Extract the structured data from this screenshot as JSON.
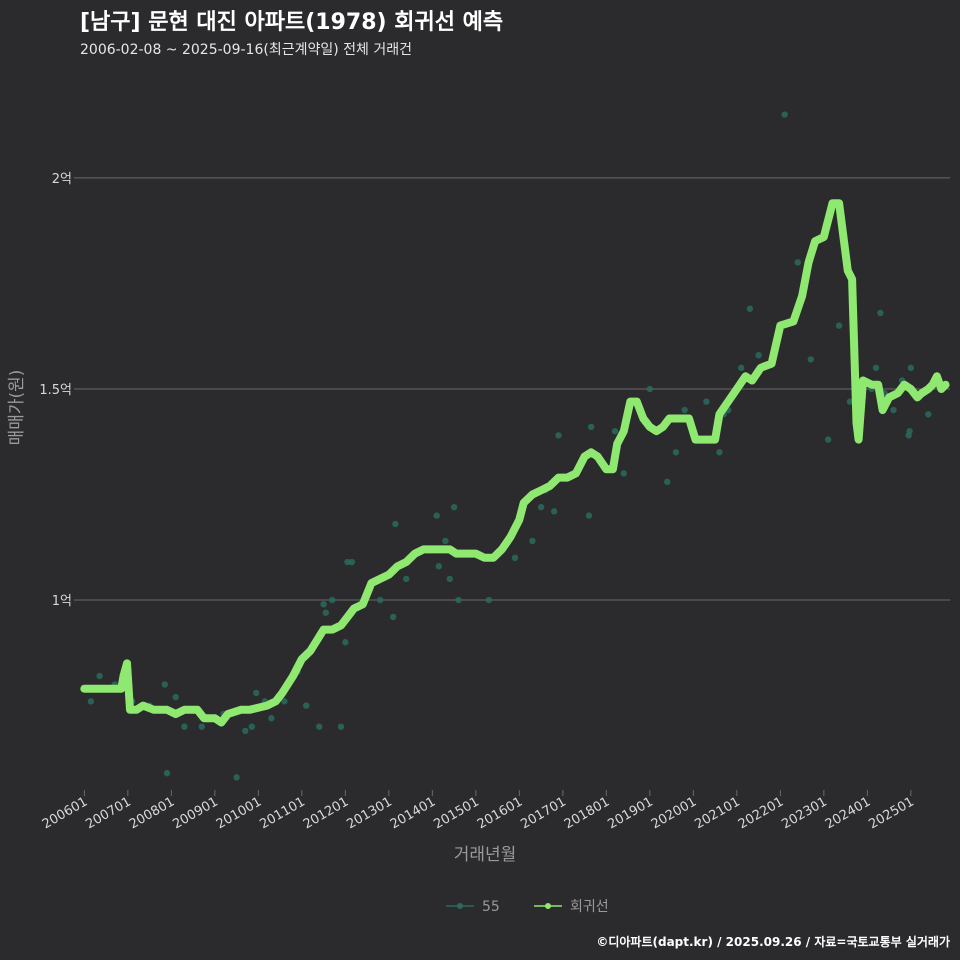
{
  "title": "[남구] 문현 대진 아파트(1978) 회귀선 예측",
  "subtitle": "2006-02-08 ~ 2025-09-16(최근계약일) 전체 거래건",
  "footer": "©디아파트(dapt.kr) / 2025.09.26 / 자료=국토교통부 실거래가",
  "colors": {
    "background": "#2b2b2d",
    "grid": "#6a6a6a",
    "regression_line": "#8fe870",
    "points": "#2a6b5e",
    "axis_text": "#d8d8d8",
    "axis_title": "#9a9a9a"
  },
  "chart_data": {
    "type": "scatter",
    "xlabel": "거래년월",
    "ylabel": "매매가(원)",
    "ylim": [
      0.55,
      2.22
    ],
    "xlim": [
      2005.9,
      2025.9
    ],
    "y_ticks": [
      {
        "value": 1.0,
        "label": "1억"
      },
      {
        "value": 1.5,
        "label": "1.5억"
      },
      {
        "value": 2.0,
        "label": "2억"
      }
    ],
    "x_ticks": [
      {
        "value": 2006,
        "label": "200601"
      },
      {
        "value": 2007,
        "label": "200701"
      },
      {
        "value": 2008,
        "label": "200801"
      },
      {
        "value": 2009,
        "label": "200901"
      },
      {
        "value": 2010,
        "label": "201001"
      },
      {
        "value": 2011,
        "label": "201101"
      },
      {
        "value": 2012,
        "label": "201201"
      },
      {
        "value": 2013,
        "label": "201301"
      },
      {
        "value": 2014,
        "label": "201401"
      },
      {
        "value": 2015,
        "label": "201501"
      },
      {
        "value": 2016,
        "label": "201601"
      },
      {
        "value": 2017,
        "label": "201701"
      },
      {
        "value": 2018,
        "label": "201801"
      },
      {
        "value": 2019,
        "label": "201901"
      },
      {
        "value": 2020,
        "label": "202001"
      },
      {
        "value": 2021,
        "label": "202101"
      },
      {
        "value": 2022,
        "label": "202201"
      },
      {
        "value": 2023,
        "label": "202301"
      },
      {
        "value": 2024,
        "label": "202401"
      },
      {
        "value": 2025,
        "label": "202501"
      }
    ],
    "legend": {
      "position": "bottom",
      "items": [
        {
          "label": "55",
          "color": "#2a6b5e"
        },
        {
          "label": "회귀선",
          "color": "#8fe870"
        }
      ]
    },
    "series": [
      {
        "name": "55",
        "kind": "points",
        "points": [
          [
            2006.15,
            0.76
          ],
          [
            2006.35,
            0.82
          ],
          [
            2006.7,
            0.8
          ],
          [
            2006.9,
            0.81
          ],
          [
            2007.1,
            0.76
          ],
          [
            2007.5,
            0.75
          ],
          [
            2007.85,
            0.8
          ],
          [
            2007.9,
            0.59
          ],
          [
            2008.1,
            0.77
          ],
          [
            2008.3,
            0.7
          ],
          [
            2008.7,
            0.7
          ],
          [
            2009.2,
            0.73
          ],
          [
            2009.5,
            0.58
          ],
          [
            2009.7,
            0.69
          ],
          [
            2009.85,
            0.7
          ],
          [
            2009.95,
            0.78
          ],
          [
            2010.15,
            0.76
          ],
          [
            2010.3,
            0.72
          ],
          [
            2010.6,
            0.76
          ],
          [
            2010.9,
            0.83
          ],
          [
            2011.1,
            0.75
          ],
          [
            2011.4,
            0.7
          ],
          [
            2011.5,
            0.99
          ],
          [
            2011.55,
            0.97
          ],
          [
            2011.7,
            1.0
          ],
          [
            2011.9,
            0.7
          ],
          [
            2012.0,
            0.9
          ],
          [
            2012.05,
            1.09
          ],
          [
            2012.15,
            1.09
          ],
          [
            2012.4,
            0.99
          ],
          [
            2012.8,
            1.0
          ],
          [
            2013.1,
            0.96
          ],
          [
            2013.15,
            1.18
          ],
          [
            2013.4,
            1.05
          ],
          [
            2014.1,
            1.2
          ],
          [
            2014.15,
            1.08
          ],
          [
            2014.3,
            1.14
          ],
          [
            2014.4,
            1.05
          ],
          [
            2014.5,
            1.22
          ],
          [
            2014.6,
            1.0
          ],
          [
            2015.2,
            1.1
          ],
          [
            2015.3,
            1.0
          ],
          [
            2015.9,
            1.1
          ],
          [
            2016.3,
            1.14
          ],
          [
            2016.5,
            1.22
          ],
          [
            2016.6,
            1.26
          ],
          [
            2016.8,
            1.21
          ],
          [
            2016.9,
            1.39
          ],
          [
            2017.3,
            1.3
          ],
          [
            2017.6,
            1.2
          ],
          [
            2017.65,
            1.41
          ],
          [
            2018.2,
            1.4
          ],
          [
            2018.4,
            1.3
          ],
          [
            2019.0,
            1.5
          ],
          [
            2019.4,
            1.28
          ],
          [
            2019.6,
            1.35
          ],
          [
            2019.8,
            1.45
          ],
          [
            2020.3,
            1.47
          ],
          [
            2020.6,
            1.35
          ],
          [
            2020.7,
            1.44
          ],
          [
            2020.8,
            1.45
          ],
          [
            2021.1,
            1.55
          ],
          [
            2021.3,
            1.69
          ],
          [
            2021.5,
            1.58
          ],
          [
            2022.1,
            2.15
          ],
          [
            2022.4,
            1.8
          ],
          [
            2022.7,
            1.57
          ],
          [
            2023.1,
            1.38
          ],
          [
            2023.35,
            1.65
          ],
          [
            2023.6,
            1.47
          ],
          [
            2023.9,
            1.48
          ],
          [
            2024.1,
            1.5
          ],
          [
            2024.2,
            1.55
          ],
          [
            2024.3,
            1.68
          ],
          [
            2024.4,
            1.49
          ],
          [
            2024.6,
            1.45
          ],
          [
            2024.8,
            1.52
          ],
          [
            2024.95,
            1.39
          ],
          [
            2024.97,
            1.4
          ],
          [
            2025.0,
            1.55
          ],
          [
            2025.4,
            1.44
          ]
        ]
      },
      {
        "name": "회귀선",
        "kind": "line",
        "points": [
          [
            2006.0,
            0.79
          ],
          [
            2006.85,
            0.79
          ],
          [
            2006.9,
            0.82
          ],
          [
            2006.98,
            0.85
          ],
          [
            2007.05,
            0.74
          ],
          [
            2007.2,
            0.74
          ],
          [
            2007.35,
            0.75
          ],
          [
            2007.6,
            0.74
          ],
          [
            2007.9,
            0.74
          ],
          [
            2008.1,
            0.73
          ],
          [
            2008.3,
            0.74
          ],
          [
            2008.6,
            0.74
          ],
          [
            2008.75,
            0.72
          ],
          [
            2009.0,
            0.72
          ],
          [
            2009.15,
            0.71
          ],
          [
            2009.3,
            0.73
          ],
          [
            2009.6,
            0.74
          ],
          [
            2009.8,
            0.74
          ],
          [
            2010.2,
            0.75
          ],
          [
            2010.4,
            0.76
          ],
          [
            2010.55,
            0.78
          ],
          [
            2010.8,
            0.82
          ],
          [
            2011.0,
            0.86
          ],
          [
            2011.2,
            0.88
          ],
          [
            2011.5,
            0.93
          ],
          [
            2011.7,
            0.93
          ],
          [
            2011.9,
            0.94
          ],
          [
            2012.2,
            0.98
          ],
          [
            2012.4,
            0.99
          ],
          [
            2012.6,
            1.04
          ],
          [
            2012.8,
            1.05
          ],
          [
            2013.0,
            1.06
          ],
          [
            2013.2,
            1.08
          ],
          [
            2013.4,
            1.09
          ],
          [
            2013.6,
            1.11
          ],
          [
            2013.8,
            1.12
          ],
          [
            2014.1,
            1.12
          ],
          [
            2014.4,
            1.12
          ],
          [
            2014.55,
            1.11
          ],
          [
            2014.8,
            1.11
          ],
          [
            2015.0,
            1.11
          ],
          [
            2015.2,
            1.1
          ],
          [
            2015.4,
            1.1
          ],
          [
            2015.6,
            1.12
          ],
          [
            2015.8,
            1.15
          ],
          [
            2016.0,
            1.19
          ],
          [
            2016.1,
            1.23
          ],
          [
            2016.3,
            1.25
          ],
          [
            2016.5,
            1.26
          ],
          [
            2016.7,
            1.27
          ],
          [
            2016.9,
            1.29
          ],
          [
            2017.1,
            1.29
          ],
          [
            2017.3,
            1.3
          ],
          [
            2017.5,
            1.34
          ],
          [
            2017.65,
            1.35
          ],
          [
            2017.8,
            1.34
          ],
          [
            2018.0,
            1.31
          ],
          [
            2018.15,
            1.31
          ],
          [
            2018.25,
            1.37
          ],
          [
            2018.4,
            1.4
          ],
          [
            2018.55,
            1.47
          ],
          [
            2018.7,
            1.47
          ],
          [
            2018.85,
            1.43
          ],
          [
            2019.0,
            1.41
          ],
          [
            2019.15,
            1.4
          ],
          [
            2019.3,
            1.41
          ],
          [
            2019.45,
            1.43
          ],
          [
            2019.7,
            1.43
          ],
          [
            2019.9,
            1.43
          ],
          [
            2020.05,
            1.38
          ],
          [
            2020.3,
            1.38
          ],
          [
            2020.5,
            1.38
          ],
          [
            2020.6,
            1.44
          ],
          [
            2020.8,
            1.47
          ],
          [
            2021.0,
            1.5
          ],
          [
            2021.2,
            1.53
          ],
          [
            2021.35,
            1.52
          ],
          [
            2021.55,
            1.55
          ],
          [
            2021.8,
            1.56
          ],
          [
            2022.0,
            1.65
          ],
          [
            2022.3,
            1.66
          ],
          [
            2022.5,
            1.72
          ],
          [
            2022.65,
            1.8
          ],
          [
            2022.8,
            1.85
          ],
          [
            2023.0,
            1.86
          ],
          [
            2023.2,
            1.94
          ],
          [
            2023.35,
            1.94
          ],
          [
            2023.55,
            1.78
          ],
          [
            2023.65,
            1.76
          ],
          [
            2023.75,
            1.42
          ],
          [
            2023.8,
            1.38
          ],
          [
            2023.9,
            1.52
          ],
          [
            2024.1,
            1.51
          ],
          [
            2024.25,
            1.51
          ],
          [
            2024.35,
            1.45
          ],
          [
            2024.5,
            1.48
          ],
          [
            2024.7,
            1.49
          ],
          [
            2024.85,
            1.51
          ],
          [
            2025.0,
            1.5
          ],
          [
            2025.15,
            1.48
          ],
          [
            2025.25,
            1.49
          ],
          [
            2025.4,
            1.5
          ],
          [
            2025.5,
            1.51
          ],
          [
            2025.6,
            1.53
          ],
          [
            2025.7,
            1.5
          ],
          [
            2025.8,
            1.51
          ]
        ]
      }
    ]
  }
}
